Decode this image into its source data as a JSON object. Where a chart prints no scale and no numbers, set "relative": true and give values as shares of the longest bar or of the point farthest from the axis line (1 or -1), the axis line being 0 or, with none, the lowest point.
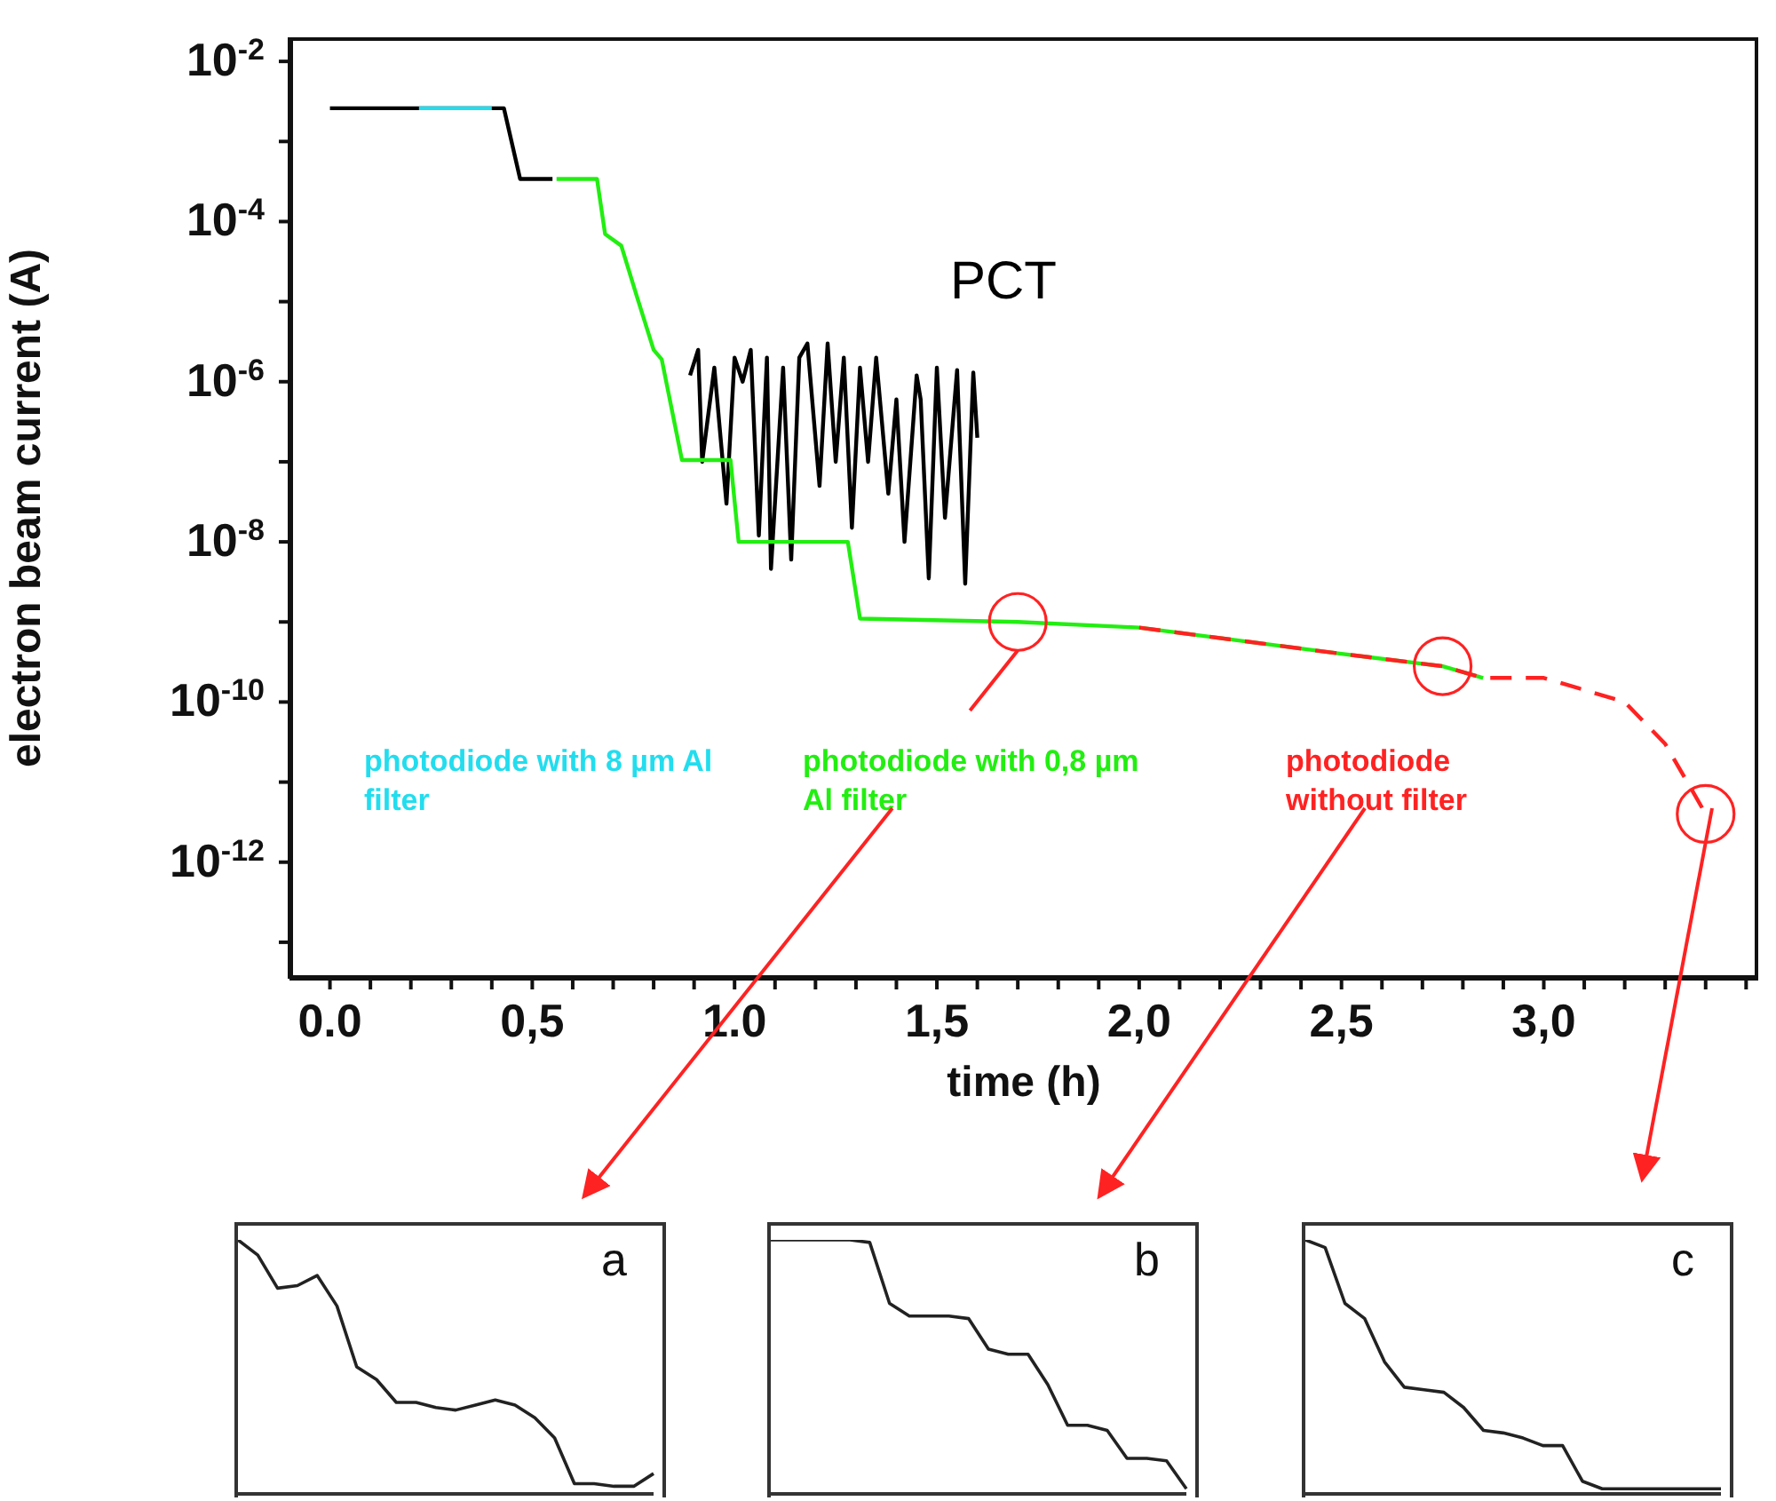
{
  "chart_data": [
    {
      "type": "line",
      "xlabel": "time (h)",
      "ylabel": "electron beam current (A)",
      "log": "y",
      "grid": false,
      "xlim": [
        -0.1,
        3.53
      ],
      "xticks": [
        {
          "value": 0,
          "label": "0.0"
        },
        {
          "value": 0.1,
          "label": null
        },
        {
          "value": 0.2,
          "label": null
        },
        {
          "value": 0.3,
          "label": null
        },
        {
          "value": 0.4,
          "label": null
        },
        {
          "value": 0.5,
          "label": "0,5"
        },
        {
          "value": 0.6,
          "label": null
        },
        {
          "value": 0.7,
          "label": null
        },
        {
          "value": 0.8,
          "label": null
        },
        {
          "value": 0.9,
          "label": null
        },
        {
          "value": 1,
          "label": "1.0"
        },
        {
          "value": 1.1,
          "label": null
        },
        {
          "value": 1.2,
          "label": null
        },
        {
          "value": 1.3,
          "label": null
        },
        {
          "value": 1.4,
          "label": null
        },
        {
          "value": 1.5,
          "label": "1,5"
        },
        {
          "value": 1.6,
          "label": null
        },
        {
          "value": 1.7,
          "label": null
        },
        {
          "value": 1.8,
          "label": null
        },
        {
          "value": 1.9,
          "label": null
        },
        {
          "value": 2,
          "label": "2,0"
        },
        {
          "value": 2.1,
          "label": null
        },
        {
          "value": 2.2,
          "label": null
        },
        {
          "value": 2.3,
          "label": null
        },
        {
          "value": 2.4,
          "label": null
        },
        {
          "value": 2.5,
          "label": "2,5"
        },
        {
          "value": 2.6,
          "label": null
        },
        {
          "value": 2.7,
          "label": null
        },
        {
          "value": 2.8,
          "label": null
        },
        {
          "value": 2.9,
          "label": null
        },
        {
          "value": 3,
          "label": "3,0"
        },
        {
          "value": 3.1,
          "label": null
        },
        {
          "value": 3.2,
          "label": null
        },
        {
          "value": 3.3,
          "label": null
        },
        {
          "value": 3.4,
          "label": null
        },
        {
          "value": 3.5,
          "label": null
        }
      ],
      "ylim": [
        3.5e-14,
        0.02
      ],
      "yticks": [
        {
          "value": 0.01,
          "label": "10$^{-2}$"
        },
        {
          "value": 0.001,
          "label": null
        },
        {
          "value": 0.0001,
          "label": "10$^{-4}$"
        },
        {
          "value": 1e-05,
          "label": null
        },
        {
          "value": 1e-06,
          "label": "10$^{-6}$"
        },
        {
          "value": 1e-07,
          "label": null
        },
        {
          "value": 1e-08,
          "label": "10$^{-8}$"
        },
        {
          "value": 1e-09,
          "label": null
        },
        {
          "value": 1e-10,
          "label": "10$^{-10}$"
        },
        {
          "value": 1e-11,
          "label": null
        },
        {
          "value": 1e-12,
          "label": "10$^{-12}$"
        },
        {
          "value": 1e-13,
          "label": null
        }
      ],
      "series": [
        {
          "name": "PCT",
          "color": "#000000",
          "x": [
            0.0,
            0.43,
            0.47,
            0.55,
            0.6,
            0.89,
            0.91,
            0.92,
            0.95,
            0.98,
            1.0,
            1.02,
            1.04,
            1.06,
            1.08,
            1.09,
            1.12,
            1.14,
            1.16,
            1.18,
            1.21,
            1.23,
            1.25,
            1.27,
            1.29,
            1.31,
            1.33,
            1.35,
            1.38,
            1.4,
            1.42,
            1.45,
            1.46,
            1.48,
            1.5,
            1.52,
            1.55,
            1.57,
            1.59,
            1.6
          ],
          "values": [
            0.0026,
            0.0026,
            0.00034,
            0.00034,
            null,
            1.2e-06,
            2.5e-06,
            1e-07,
            1.5e-06,
            3e-08,
            2e-06,
            1e-06,
            2.5e-06,
            1.2e-08,
            2e-06,
            4.6e-09,
            1.5e-06,
            6e-09,
            2e-06,
            3e-06,
            5e-08,
            3e-06,
            1e-07,
            2e-06,
            1.5e-08,
            1.5e-06,
            1e-07,
            2e-06,
            4e-08,
            6e-07,
            1e-08,
            1.2e-06,
            6e-07,
            3.5e-09,
            1.5e-06,
            2e-08,
            1.4e-06,
            3e-09,
            1.3e-06,
            2e-07
          ]
        },
        {
          "name": "photodiode with 8 µm Al filter",
          "color": "#22ddee",
          "x": [
            0.22,
            0.4
          ],
          "values": [
            0.0026,
            0.0026
          ]
        },
        {
          "name": "photodiode with 0,8 µm Al filter",
          "color": "#22ee11",
          "x": [
            0.56,
            0.66,
            0.68,
            0.72,
            0.76,
            0.8,
            0.82,
            0.87,
            0.99,
            1.01,
            1.28,
            1.31,
            1.7,
            2.0,
            2.5,
            2.75,
            2.85
          ],
          "values": [
            0.00034,
            0.00034,
            7e-05,
            5e-05,
            1.1e-05,
            2.5e-06,
            1.9e-06,
            1.05e-07,
            1.05e-07,
            1e-08,
            1e-08,
            1.1e-09,
            1e-09,
            8.5e-10,
            4e-10,
            2.8e-10,
            2e-10
          ]
        },
        {
          "name": "photodiode without filter",
          "color": "#ff2222",
          "line_style": "dashed",
          "x": [
            2.0,
            2.5,
            2.75,
            2.85,
            3.0,
            3.2,
            3.3,
            3.36,
            3.4
          ],
          "values": [
            8.5e-10,
            4e-10,
            2.8e-10,
            2e-10,
            2e-10,
            1e-10,
            3e-11,
            9e-12,
            4e-12
          ]
        }
      ]
    },
    {
      "type": "line",
      "title": "a",
      "relative": true,
      "color": "#222222",
      "categories": [
        null,
        null,
        null,
        null,
        null,
        null,
        null,
        null,
        null,
        null,
        null,
        null,
        null,
        null,
        null,
        null,
        null,
        null,
        null,
        null,
        null,
        null
      ],
      "values": [
        1.0,
        0.94,
        0.81,
        0.82,
        0.86,
        0.74,
        0.5,
        0.45,
        0.36,
        0.36,
        0.34,
        0.33,
        0.35,
        0.37,
        0.35,
        0.3,
        0.22,
        0.04,
        0.04,
        0.03,
        0.03,
        0.08
      ]
    },
    {
      "type": "line",
      "title": "b",
      "relative": true,
      "color": "#222222",
      "categories": [
        null,
        null,
        null,
        null,
        null,
        null,
        null,
        null,
        null,
        null,
        null,
        null,
        null,
        null,
        null,
        null,
        null,
        null,
        null,
        null,
        null,
        null
      ],
      "values": [
        1.0,
        1.0,
        1.0,
        1.0,
        1.0,
        0.99,
        0.75,
        0.7,
        0.7,
        0.7,
        0.69,
        0.57,
        0.55,
        0.55,
        0.43,
        0.27,
        0.27,
        0.25,
        0.14,
        0.14,
        0.13,
        0.02
      ]
    },
    {
      "type": "line",
      "title": "c",
      "relative": true,
      "color": "#222222",
      "categories": [
        null,
        null,
        null,
        null,
        null,
        null,
        null,
        null,
        null,
        null,
        null,
        null,
        null,
        null,
        null,
        null,
        null,
        null,
        null,
        null,
        null,
        null
      ],
      "values": [
        1.0,
        0.97,
        0.75,
        0.69,
        0.52,
        0.42,
        0.41,
        0.4,
        0.34,
        0.25,
        0.24,
        0.22,
        0.19,
        0.19,
        0.05,
        0.02,
        0.02,
        0.02,
        0.02,
        0.02,
        0.02,
        0.02
      ]
    }
  ]
}
